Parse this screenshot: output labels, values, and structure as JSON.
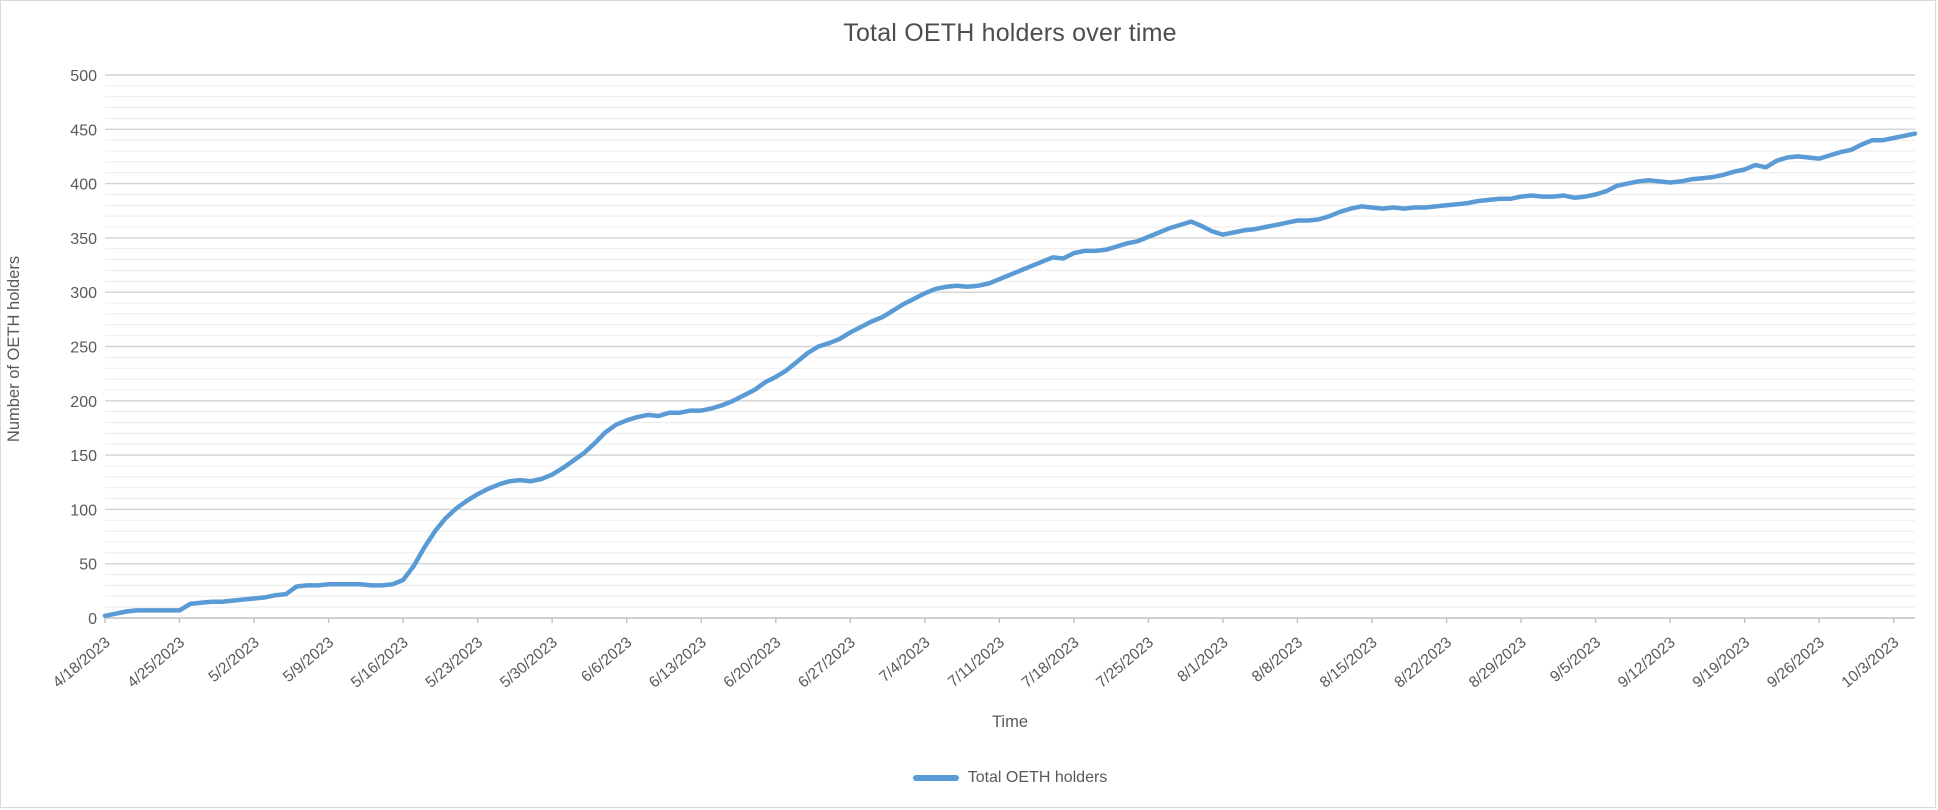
{
  "chart": {
    "title": "Total OETH holders over time",
    "colors": {
      "series_line": "#5b9bd5",
      "axis_text": "#595959",
      "title_text": "#4d4d4d",
      "major_gridline": "#d2d2d2",
      "minor_gridline": "#ececec",
      "axis_line": "#c0c0c0"
    }
  },
  "chart_data": {
    "type": "line",
    "title": "Total OETH holders over time",
    "xlabel": "Time",
    "ylabel": "Number of OETH holders",
    "ylim": [
      0,
      500
    ],
    "y_major_step": 50,
    "y_minor_step": 10,
    "y_tick_labels": [
      "0",
      "50",
      "100",
      "150",
      "200",
      "250",
      "300",
      "350",
      "400",
      "450",
      "500"
    ],
    "grid": "on",
    "legend_position": "bottom-center",
    "x_tick_labels": [
      "4/18/2023",
      "4/25/2023",
      "5/2/2023",
      "5/9/2023",
      "5/16/2023",
      "5/23/2023",
      "5/30/2023",
      "6/6/2023",
      "6/13/2023",
      "6/20/2023",
      "6/27/2023",
      "7/4/2023",
      "7/11/2023",
      "7/18/2023",
      "7/25/2023",
      "8/1/2023",
      "8/8/2023",
      "8/15/2023",
      "8/22/2023",
      "8/29/2023",
      "9/5/2023",
      "9/12/2023",
      "9/19/2023",
      "9/26/2023",
      "10/3/2023"
    ],
    "x_unit": "daily points starting 4/18/2023, ticks every 7 days",
    "series": [
      {
        "name": "Total OETH holders",
        "color": "#5b9bd5",
        "values": [
          2,
          4,
          6,
          7,
          7,
          7,
          7,
          7,
          13,
          14,
          15,
          15,
          16,
          17,
          18,
          19,
          21,
          22,
          29,
          30,
          30,
          31,
          31,
          31,
          31,
          30,
          30,
          31,
          35,
          48,
          65,
          80,
          92,
          101,
          108,
          114,
          119,
          123,
          126,
          127,
          126,
          128,
          132,
          138,
          145,
          152,
          161,
          171,
          178,
          182,
          185,
          187,
          186,
          189,
          189,
          191,
          191,
          193,
          196,
          200,
          205,
          210,
          217,
          222,
          228,
          236,
          244,
          250,
          253,
          257,
          263,
          268,
          273,
          277,
          283,
          289,
          294,
          299,
          303,
          305,
          306,
          305,
          306,
          308,
          312,
          316,
          320,
          324,
          328,
          332,
          331,
          336,
          338,
          338,
          339,
          342,
          345,
          347,
          351,
          355,
          359,
          362,
          365,
          361,
          356,
          353,
          355,
          357,
          358,
          360,
          362,
          364,
          366,
          366,
          367,
          370,
          374,
          377,
          379,
          378,
          377,
          378,
          377,
          378,
          378,
          379,
          380,
          381,
          382,
          384,
          385,
          386,
          386,
          388,
          389,
          388,
          388,
          389,
          387,
          388,
          390,
          393,
          398,
          400,
          402,
          403,
          402,
          401,
          402,
          404,
          405,
          406,
          408,
          411,
          413,
          417,
          415,
          421,
          424,
          425,
          424,
          423,
          426,
          429,
          431,
          436,
          440,
          440,
          442,
          444,
          446
        ]
      }
    ]
  }
}
